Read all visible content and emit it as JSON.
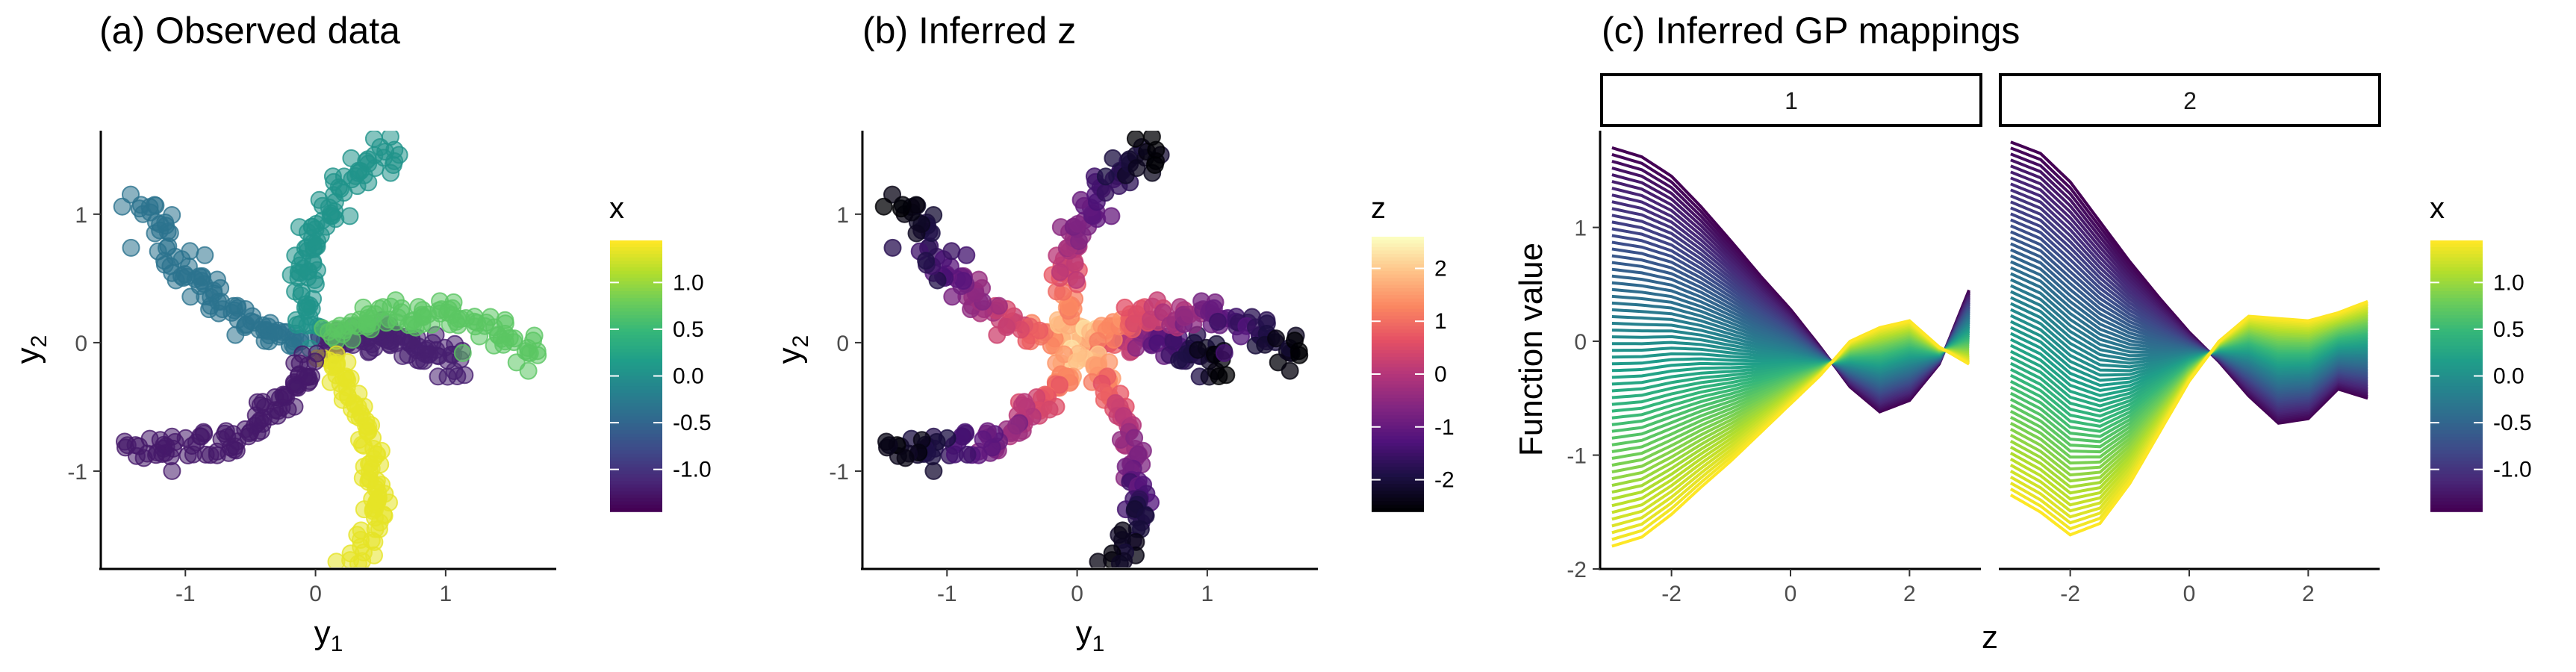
{
  "panels": {
    "a": {
      "title": "(a) Observed data",
      "xlabel_main": "y",
      "xlabel_sub": "1",
      "ylabel_main": "y",
      "ylabel_sub": "2",
      "legend_title": "x"
    },
    "b": {
      "title": "(b) Inferred z",
      "xlabel_main": "y",
      "xlabel_sub": "1",
      "ylabel_main": "y",
      "ylabel_sub": "2",
      "legend_title": "z"
    },
    "c": {
      "title": "(c) Inferred GP mappings",
      "xlabel": "z",
      "ylabel": "Function value",
      "legend_title": "x",
      "facets": [
        "1",
        "2"
      ]
    }
  },
  "colors": {
    "viridis": [
      "#440154",
      "#482878",
      "#3E4A89",
      "#31688E",
      "#26828E",
      "#1F9E89",
      "#35B779",
      "#6DCD59",
      "#B4DE2C",
      "#FDE725"
    ],
    "magma": [
      "#000004",
      "#1C1044",
      "#4F127B",
      "#812581",
      "#B5367A",
      "#E55064",
      "#FB8761",
      "#FEC287",
      "#FCFDBF"
    ]
  },
  "chart_data": [
    {
      "type": "scatter",
      "panel": "a",
      "title": "(a) Observed data",
      "xlabel": "y1",
      "ylabel": "y2",
      "xlim": [
        -1.65,
        1.85
      ],
      "ylim": [
        -1.75,
        1.65
      ],
      "xticks": [
        "-1",
        "0",
        "1"
      ],
      "yticks": [
        "-1",
        "0",
        "1"
      ],
      "color_by": "x",
      "legend": {
        "title": "x",
        "ticks": [
          "1.0",
          "0.5",
          "0.0",
          "-0.5",
          "-1.0"
        ],
        "range": [
          -1.45,
          1.45
        ],
        "colormap": "viridis",
        "placement": "right"
      },
      "arms": [
        {
          "x": -1.2,
          "tip": [
            1.08,
            -0.18
          ],
          "mid": [
            0.5,
            0.15
          ]
        },
        {
          "x": -0.35,
          "tip": [
            -1.32,
            1.12
          ],
          "mid": [
            -0.85,
            0.1
          ]
        },
        {
          "x": 0.05,
          "tip": [
            0.62,
            1.53
          ],
          "mid": [
            -0.35,
            0.95
          ]
        },
        {
          "x": 0.7,
          "tip": [
            1.67,
            -0.12
          ],
          "mid": [
            0.9,
            0.55
          ]
        },
        {
          "x": 1.35,
          "tip": [
            0.33,
            -1.65
          ],
          "mid": [
            0.7,
            -0.85
          ]
        },
        {
          "x": -1.25,
          "tip": [
            -1.48,
            -0.83
          ],
          "mid": [
            -0.3,
            -0.95
          ]
        }
      ]
    },
    {
      "type": "scatter",
      "panel": "b",
      "title": "(b) Inferred z",
      "xlabel": "y1",
      "ylabel": "y2",
      "xlim": [
        -1.65,
        1.85
      ],
      "ylim": [
        -1.75,
        1.65
      ],
      "xticks": [
        "-1",
        "0",
        "1"
      ],
      "yticks": [
        "-1",
        "0",
        "1"
      ],
      "color_by": "z",
      "legend": {
        "title": "z",
        "ticks": [
          "2",
          "1",
          "0",
          "-1",
          "-2"
        ],
        "range": [
          -2.6,
          2.6
        ],
        "colormap": "magma",
        "placement": "right"
      },
      "arms": "same as panel a; z = 2.4 near centre decreasing to -2.6 at arm tips"
    },
    {
      "type": "line",
      "panel": "c",
      "title": "(c) Inferred GP mappings",
      "xlabel": "z",
      "ylabel": "Function value",
      "xlim": [
        -3.2,
        3.2
      ],
      "ylim": [
        -2.0,
        1.85
      ],
      "xticks": [
        "-2",
        "0",
        "2"
      ],
      "yticks": [
        "1",
        "0",
        "-1",
        "-2"
      ],
      "color_by": "x",
      "legend": {
        "title": "x",
        "ticks": [
          "1.0",
          "0.5",
          "0.0",
          "-0.5",
          "-1.0"
        ],
        "range": [
          -1.45,
          1.45
        ],
        "colormap": "viridis",
        "placement": "right"
      },
      "facets": [
        {
          "label": "1",
          "curve_x": [
            -3,
            -2.5,
            -2,
            -1.5,
            -1,
            -0.5,
            0,
            0.5,
            1,
            1.5,
            2,
            2.5,
            3
          ],
          "curve_x_min": [
            1.7,
            1.62,
            1.45,
            1.18,
            0.88,
            0.57,
            0.28,
            -0.05,
            -0.4,
            -0.62,
            -0.52,
            -0.2,
            0.45
          ],
          "curve_x_max": [
            -1.8,
            -1.72,
            -1.52,
            -1.28,
            -1.05,
            -0.8,
            -0.55,
            -0.3,
            0.0,
            0.12,
            0.18,
            -0.05,
            -0.2
          ]
        },
        {
          "label": "2",
          "curve_x": [
            -3,
            -2.5,
            -2,
            -1.5,
            -1,
            -0.5,
            0,
            0.5,
            1,
            1.5,
            2,
            2.5,
            3
          ],
          "curve_x_min": [
            1.75,
            1.65,
            1.4,
            1.05,
            0.7,
            0.38,
            0.08,
            -0.18,
            -0.48,
            -0.72,
            -0.68,
            -0.42,
            -0.5
          ],
          "curve_x_max": [
            -1.35,
            -1.5,
            -1.7,
            -1.6,
            -1.25,
            -0.8,
            -0.35,
            0.0,
            0.22,
            0.2,
            0.18,
            0.25,
            0.35
          ]
        }
      ]
    }
  ]
}
